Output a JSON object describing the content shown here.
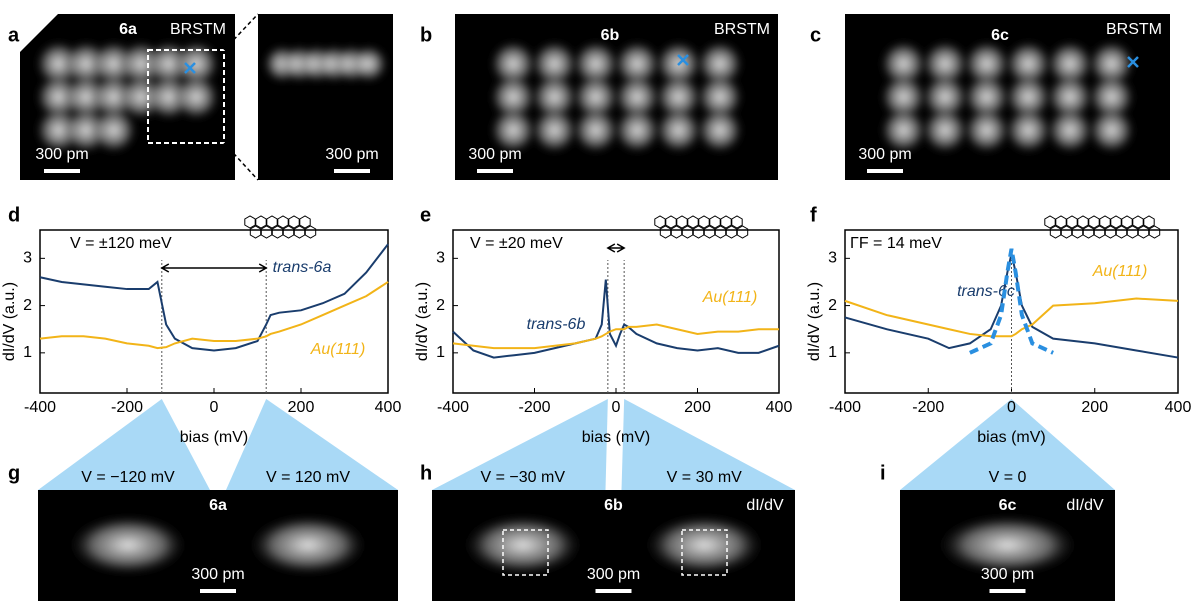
{
  "panel_labels": [
    "a",
    "b",
    "c",
    "d",
    "e",
    "f",
    "g",
    "h",
    "i"
  ],
  "images": [
    {
      "molecule": "6a",
      "mode": "BRSTM",
      "scale": "300 pm"
    },
    {
      "scale": "300 pm"
    },
    {
      "molecule": "6b",
      "mode": "BRSTM",
      "scale": "300 pm"
    },
    {
      "molecule": "6c",
      "mode": "BRSTM",
      "scale": "300 pm"
    }
  ],
  "chart_data": [
    {
      "type": "line",
      "annotation": "V = ±120 meV",
      "xlabel": "bias (mV)",
      "ylabel": "dI/dV (a.u.)",
      "x": [
        -400,
        -350,
        -300,
        -250,
        -200,
        -150,
        -130,
        -110,
        -90,
        -50,
        0,
        50,
        100,
        120,
        130,
        150,
        200,
        250,
        300,
        350,
        400
      ],
      "series": [
        {
          "name": "trans-6a",
          "color": "#1a3d6d",
          "values": [
            2.6,
            2.5,
            2.45,
            2.4,
            2.35,
            2.35,
            2.5,
            1.6,
            1.3,
            1.1,
            1.05,
            1.1,
            1.25,
            1.6,
            1.8,
            1.85,
            1.9,
            2.05,
            2.25,
            2.7,
            3.3
          ]
        },
        {
          "name": "Au(111)",
          "color": "#f2b418",
          "values": [
            1.3,
            1.35,
            1.35,
            1.3,
            1.2,
            1.15,
            1.1,
            1.12,
            1.2,
            1.3,
            1.25,
            1.25,
            1.3,
            1.35,
            1.4,
            1.45,
            1.6,
            1.8,
            2.0,
            2.2,
            2.5
          ]
        }
      ],
      "markers": [
        -120,
        120
      ],
      "xlim": [
        -400,
        400
      ],
      "ylim": [
        0.15,
        3.6
      ],
      "xticks": [
        -400,
        -200,
        0,
        200,
        400
      ],
      "yticks": [
        1,
        2,
        3
      ]
    },
    {
      "type": "line",
      "annotation": "V = ±20 meV",
      "xlabel": "bias (mV)",
      "ylabel": "dI/dV (a.u.)",
      "x": [
        -400,
        -350,
        -300,
        -250,
        -200,
        -150,
        -100,
        -50,
        -35,
        -25,
        -15,
        0,
        10,
        20,
        30,
        50,
        100,
        150,
        200,
        250,
        300,
        350,
        400
      ],
      "series": [
        {
          "name": "trans-6b",
          "color": "#1a3d6d",
          "values": [
            1.45,
            1.05,
            0.9,
            0.95,
            1.0,
            1.1,
            1.2,
            1.3,
            1.6,
            2.55,
            1.4,
            1.15,
            1.4,
            1.6,
            1.55,
            1.4,
            1.2,
            1.1,
            1.05,
            1.1,
            1.0,
            1.0,
            1.15
          ]
        },
        {
          "name": "Au(111)",
          "color": "#f2b418",
          "values": [
            1.2,
            1.15,
            1.1,
            1.1,
            1.1,
            1.15,
            1.2,
            1.3,
            1.35,
            1.4,
            1.45,
            1.5,
            1.5,
            1.5,
            1.55,
            1.55,
            1.6,
            1.5,
            1.4,
            1.45,
            1.45,
            1.5,
            1.5
          ]
        }
      ],
      "markers": [
        -20,
        20
      ],
      "xlim": [
        -400,
        400
      ],
      "ylim": [
        0.15,
        3.6
      ],
      "xticks": [
        -400,
        -200,
        0,
        200,
        400
      ],
      "yticks": [
        1,
        2,
        3
      ]
    },
    {
      "type": "line",
      "annotation": "ΓF = 14 meV",
      "xlabel": "bias (mV)",
      "ylabel": "dI/dV (a.u.)",
      "x": [
        -400,
        -300,
        -200,
        -150,
        -100,
        -50,
        -25,
        -10,
        0,
        10,
        25,
        50,
        100,
        200,
        300,
        400
      ],
      "series": [
        {
          "name": "trans-6c",
          "color": "#1a3d6d",
          "values": [
            1.75,
            1.5,
            1.3,
            1.1,
            1.2,
            1.5,
            2.0,
            2.7,
            3.1,
            2.7,
            2.0,
            1.55,
            1.3,
            1.2,
            1.05,
            0.9
          ]
        },
        {
          "name": "Au(111)",
          "color": "#f2b418",
          "values": [
            2.1,
            1.8,
            1.6,
            1.5,
            1.4,
            1.35,
            1.35,
            1.35,
            1.35,
            1.4,
            1.5,
            1.6,
            2.0,
            2.05,
            2.15,
            2.1
          ]
        },
        {
          "color": "#2a8fe0",
          "dashed": true,
          "values": [
            null,
            null,
            null,
            null,
            1.0,
            1.2,
            1.8,
            2.7,
            3.2,
            2.7,
            1.8,
            1.2,
            1.0,
            null,
            null,
            null
          ]
        }
      ],
      "markers": [
        0
      ],
      "xlim": [
        -400,
        400
      ],
      "ylim": [
        0.15,
        3.6
      ],
      "xticks": [
        -400,
        -200,
        0,
        200,
        400
      ],
      "yticks": [
        1,
        2,
        3
      ]
    }
  ],
  "maps": [
    {
      "labels": [
        "V = −120 mV",
        "V = 120 mV"
      ],
      "molecule": "6a",
      "scale": "300 pm"
    },
    {
      "labels": [
        "V = −30 mV",
        "V = 30 mV"
      ],
      "molecule": "6b",
      "mode": "dI/dV",
      "scale": "300 pm"
    },
    {
      "labels": [
        "V = 0"
      ],
      "molecule": "6c",
      "mode": "dI/dV",
      "scale": "300 pm"
    }
  ]
}
